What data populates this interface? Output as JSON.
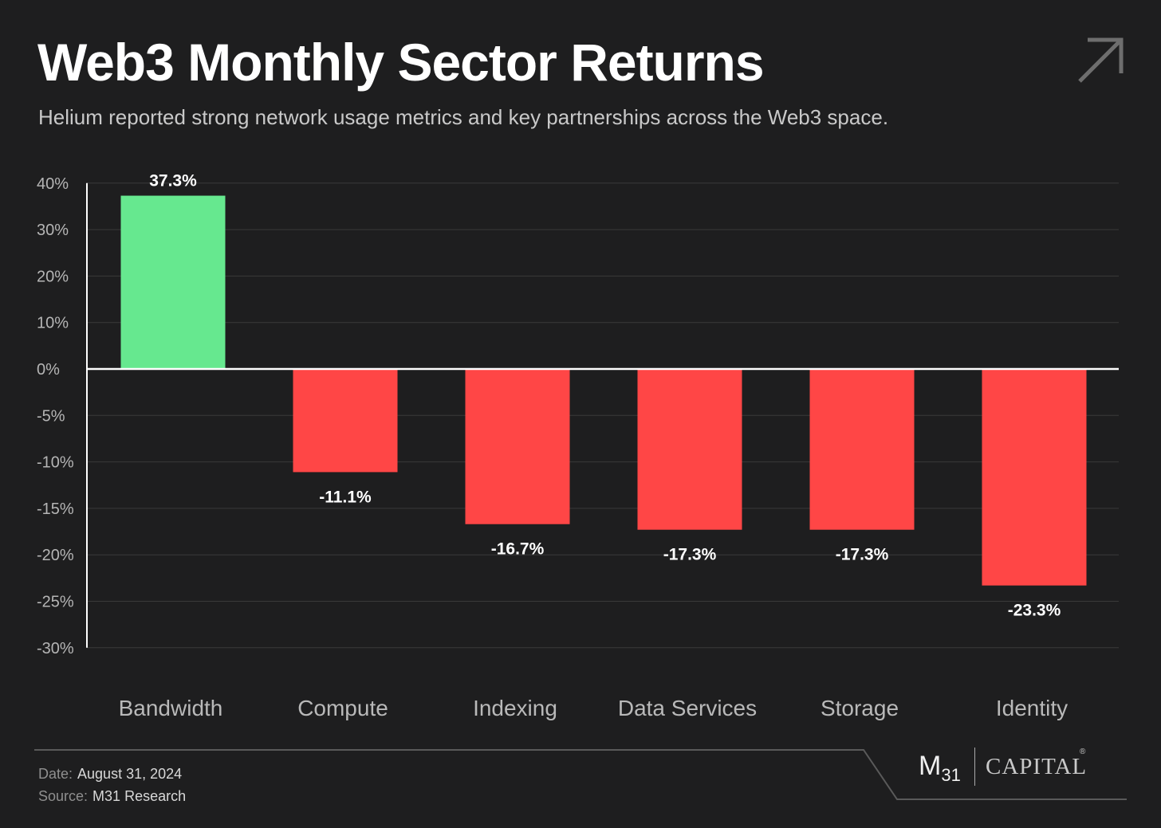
{
  "header": {
    "title": "Web3 Monthly Sector Returns",
    "subtitle": "Helium reported strong network usage metrics and key partnerships across the Web3 space."
  },
  "icons": {
    "corner": "arrow-up-right-icon"
  },
  "colors": {
    "background": "#1e1e1f",
    "positive": "#66e88f",
    "negative": "#ff4646",
    "grid": "#3a3a3a",
    "zero_line": "#ffffff"
  },
  "chart_data": {
    "type": "bar",
    "categories": [
      "Bandwidth",
      "Compute",
      "Indexing",
      "Data Services",
      "Storage",
      "Identity"
    ],
    "values": [
      37.3,
      -11.1,
      -16.7,
      -17.3,
      -17.3,
      -23.3
    ],
    "value_labels": [
      "37.3%",
      "-11.1%",
      "-16.7%",
      "-17.3%",
      "-17.3%",
      "-23.3%"
    ],
    "y_ticks": [
      {
        "value": 40,
        "label": "40%"
      },
      {
        "value": 30,
        "label": "30%"
      },
      {
        "value": 20,
        "label": "20%"
      },
      {
        "value": 10,
        "label": "10%"
      },
      {
        "value": 0,
        "label": "0%"
      },
      {
        "value": -5,
        "label": "-5%"
      },
      {
        "value": -10,
        "label": "-10%"
      },
      {
        "value": -15,
        "label": "-15%"
      },
      {
        "value": -20,
        "label": "-20%"
      },
      {
        "value": -25,
        "label": "-25%"
      },
      {
        "value": -30,
        "label": "-30%"
      }
    ],
    "ylim": [
      -30,
      40
    ],
    "scale_note": "positive side uses 10% per gridline, negative side uses 5% per gridline",
    "grid": true,
    "legend": "none",
    "xlabel": "",
    "ylabel": ""
  },
  "footer": {
    "date_label": "Date:",
    "date_value": "August 31, 2024",
    "source_label": "Source:",
    "source_value": "M31 Research",
    "logo_m": "M",
    "logo_sub": "31",
    "logo_capital": "CAPITAL",
    "logo_reg": "®"
  }
}
